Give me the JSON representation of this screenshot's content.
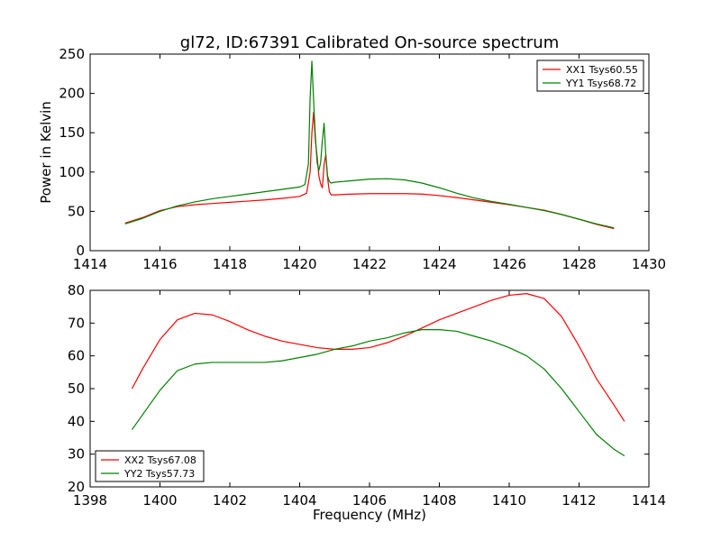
{
  "figure": {
    "title": "gl72, ID:67391 Calibrated On-source spectrum"
  },
  "chart_data": [
    {
      "type": "line",
      "title": "gl72, ID:67391 Calibrated On-source spectrum",
      "xlabel": "",
      "ylabel": "Power in Kelvin",
      "xlim": [
        1414,
        1430
      ],
      "ylim": [
        0,
        250
      ],
      "xticks": [
        1414,
        1416,
        1418,
        1420,
        1422,
        1424,
        1426,
        1428,
        1430
      ],
      "yticks": [
        0,
        50,
        100,
        150,
        200,
        250
      ],
      "grid": false,
      "legend_position": "top-right",
      "series": [
        {
          "name": "XX1 Tsys60.55",
          "color": "#ff0000",
          "x": [
            1415.0,
            1415.5,
            1416.0,
            1416.5,
            1417.0,
            1417.5,
            1418.0,
            1418.5,
            1419.0,
            1419.5,
            1420.0,
            1420.2,
            1420.3,
            1420.35,
            1420.4,
            1420.45,
            1420.5,
            1420.55,
            1420.6,
            1420.65,
            1420.7,
            1420.75,
            1420.8,
            1420.85,
            1420.9,
            1421.0,
            1421.5,
            1422.0,
            1422.5,
            1423.0,
            1423.5,
            1424.0,
            1424.5,
            1425.0,
            1425.5,
            1426.0,
            1426.5,
            1427.0,
            1427.5,
            1428.0,
            1428.5,
            1429.0
          ],
          "values": [
            35,
            42,
            51,
            56,
            58.5,
            60,
            61.5,
            63,
            64.5,
            66.5,
            69,
            73,
            100,
            150,
            176,
            140,
            120,
            95,
            85,
            80,
            110,
            122,
            92,
            75,
            71,
            71,
            72,
            72.5,
            72.5,
            72.5,
            72,
            70,
            67.5,
            64.5,
            61.5,
            58.5,
            55,
            51.5,
            46,
            40,
            33.5,
            28
          ]
        },
        {
          "name": "YY1 Tsys68.72",
          "color": "#008000",
          "x": [
            1415.0,
            1415.5,
            1416.0,
            1416.5,
            1417.0,
            1417.5,
            1418.0,
            1418.5,
            1419.0,
            1419.5,
            1420.0,
            1420.15,
            1420.25,
            1420.3,
            1420.35,
            1420.4,
            1420.45,
            1420.5,
            1420.55,
            1420.6,
            1420.65,
            1420.7,
            1420.75,
            1420.8,
            1420.85,
            1420.9,
            1421.0,
            1421.5,
            1422.0,
            1422.5,
            1423.0,
            1423.5,
            1424.0,
            1424.5,
            1425.0,
            1425.5,
            1426.0,
            1426.5,
            1427.0,
            1427.5,
            1428.0,
            1428.5,
            1429.0
          ],
          "values": [
            34,
            41,
            50,
            57,
            62,
            66,
            69,
            72,
            75,
            78,
            81,
            84,
            110,
            195,
            241,
            190,
            145,
            112,
            102,
            112,
            140,
            162,
            120,
            95,
            88,
            86,
            87,
            89,
            91,
            91.5,
            90,
            86,
            80,
            73,
            67,
            62.5,
            59,
            55,
            51,
            46,
            40,
            34,
            29
          ]
        }
      ]
    },
    {
      "type": "line",
      "title": "",
      "xlabel": "Frequency (MHz)",
      "ylabel": "",
      "xlim": [
        1398,
        1414
      ],
      "ylim": [
        20,
        80
      ],
      "xticks": [
        1398,
        1400,
        1402,
        1404,
        1406,
        1408,
        1410,
        1412,
        1414
      ],
      "yticks": [
        20,
        30,
        40,
        50,
        60,
        70,
        80
      ],
      "grid": false,
      "legend_position": "bottom-left",
      "series": [
        {
          "name": "XX2 Tsys67.08",
          "color": "#ff0000",
          "x": [
            1399.2,
            1399.5,
            1400.0,
            1400.5,
            1401.0,
            1401.5,
            1402.0,
            1402.5,
            1403.0,
            1403.5,
            1404.0,
            1404.5,
            1405.0,
            1405.5,
            1406.0,
            1406.5,
            1407.0,
            1407.5,
            1408.0,
            1408.5,
            1409.0,
            1409.5,
            1410.0,
            1410.5,
            1411.0,
            1411.5,
            1412.0,
            1412.5,
            1413.0,
            1413.3
          ],
          "values": [
            50,
            56,
            65,
            71,
            73,
            72.5,
            70.5,
            68,
            66,
            64.5,
            63.5,
            62.5,
            62,
            62,
            62.5,
            64,
            66,
            68.5,
            71,
            73,
            75,
            77,
            78.5,
            79,
            77.5,
            72,
            63,
            53,
            45,
            40
          ]
        },
        {
          "name": "YY2 Tsys57.73",
          "color": "#008000",
          "x": [
            1399.2,
            1399.5,
            1400.0,
            1400.5,
            1401.0,
            1401.5,
            1402.0,
            1402.5,
            1403.0,
            1403.5,
            1404.0,
            1404.5,
            1405.0,
            1405.5,
            1406.0,
            1406.5,
            1407.0,
            1407.5,
            1408.0,
            1408.5,
            1409.0,
            1409.5,
            1410.0,
            1410.5,
            1411.0,
            1411.5,
            1412.0,
            1412.5,
            1413.0,
            1413.3
          ],
          "values": [
            37.5,
            42,
            49.5,
            55.5,
            57.5,
            58,
            58,
            58,
            58,
            58.5,
            59.5,
            60.5,
            62,
            63,
            64.5,
            65.5,
            67,
            68,
            68,
            67.5,
            66,
            64.5,
            62.5,
            60,
            56,
            50,
            43,
            36,
            31.5,
            29.5
          ]
        }
      ]
    }
  ]
}
